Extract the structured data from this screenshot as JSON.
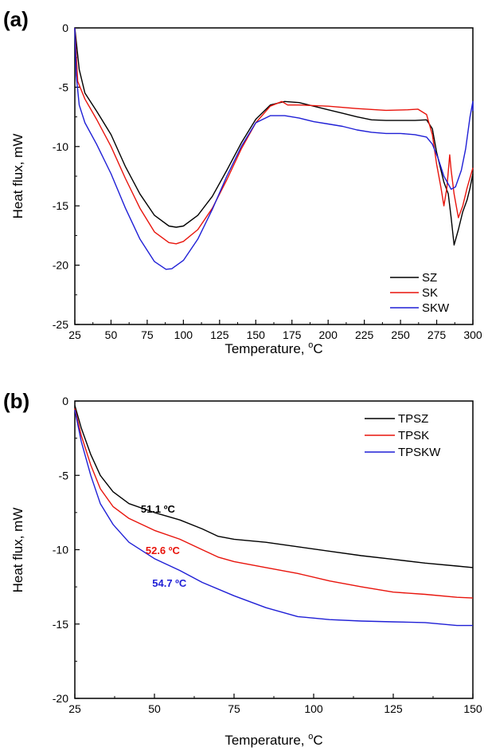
{
  "chart_data": [
    {
      "panel": "(a)",
      "type": "line",
      "xlabel": "Temperature, °C",
      "ylabel": "Heat flux, mW",
      "xlim": [
        25,
        300
      ],
      "ylim": [
        -25,
        0
      ],
      "xticks": [
        25,
        50,
        75,
        100,
        125,
        150,
        175,
        200,
        225,
        250,
        275,
        300
      ],
      "yticks": [
        0,
        -5,
        -10,
        -15,
        -20,
        -25
      ],
      "legend_position": "bottom-right",
      "series": [
        {
          "name": "SZ",
          "color": "#000000",
          "points": [
            [
              25,
              0
            ],
            [
              28,
              -3.5
            ],
            [
              32,
              -5.5
            ],
            [
              40,
              -7
            ],
            [
              50,
              -9
            ],
            [
              60,
              -11.7
            ],
            [
              70,
              -14
            ],
            [
              80,
              -15.8
            ],
            [
              90,
              -16.7
            ],
            [
              95,
              -16.8
            ],
            [
              100,
              -16.7
            ],
            [
              110,
              -15.8
            ],
            [
              120,
              -14.2
            ],
            [
              130,
              -12
            ],
            [
              140,
              -9.7
            ],
            [
              150,
              -7.7
            ],
            [
              160,
              -6.5
            ],
            [
              170,
              -6.2
            ],
            [
              180,
              -6.3
            ],
            [
              190,
              -6.6
            ],
            [
              200,
              -6.9
            ],
            [
              210,
              -7.2
            ],
            [
              220,
              -7.5
            ],
            [
              230,
              -7.75
            ],
            [
              240,
              -7.8
            ],
            [
              250,
              -7.8
            ],
            [
              260,
              -7.8
            ],
            [
              268,
              -7.75
            ],
            [
              272,
              -8.5
            ],
            [
              275,
              -10.5
            ],
            [
              280,
              -13
            ],
            [
              283,
              -14
            ],
            [
              285,
              -16
            ],
            [
              287,
              -18.3
            ],
            [
              290,
              -17
            ],
            [
              293,
              -15.5
            ],
            [
              296,
              -14.5
            ],
            [
              298,
              -13.5
            ],
            [
              300,
              -12.3
            ]
          ]
        },
        {
          "name": "SK",
          "color": "#e8140c",
          "points": [
            [
              25,
              0
            ],
            [
              27,
              -4.5
            ],
            [
              32,
              -6
            ],
            [
              40,
              -7.7
            ],
            [
              50,
              -10
            ],
            [
              60,
              -12.7
            ],
            [
              70,
              -15.2
            ],
            [
              80,
              -17.2
            ],
            [
              90,
              -18.1
            ],
            [
              95,
              -18.2
            ],
            [
              100,
              -18
            ],
            [
              110,
              -17
            ],
            [
              120,
              -15.2
            ],
            [
              130,
              -12.8
            ],
            [
              140,
              -10.2
            ],
            [
              150,
              -8
            ],
            [
              160,
              -6.6
            ],
            [
              168,
              -6.2
            ],
            [
              172,
              -6.5
            ],
            [
              180,
              -6.5
            ],
            [
              200,
              -6.6
            ],
            [
              220,
              -6.8
            ],
            [
              240,
              -6.95
            ],
            [
              255,
              -6.9
            ],
            [
              262,
              -6.85
            ],
            [
              268,
              -7.3
            ],
            [
              272,
              -9
            ],
            [
              275,
              -11.5
            ],
            [
              278,
              -13.5
            ],
            [
              280,
              -15
            ],
            [
              282,
              -13.5
            ],
            [
              284,
              -10.7
            ],
            [
              285,
              -12
            ],
            [
              287,
              -14
            ],
            [
              290,
              -16
            ],
            [
              293,
              -15
            ],
            [
              296,
              -13.5
            ],
            [
              300,
              -11.8
            ]
          ]
        },
        {
          "name": "SKW",
          "color": "#1f1fd6",
          "points": [
            [
              25,
              0
            ],
            [
              26,
              -4
            ],
            [
              28,
              -6.5
            ],
            [
              32,
              -8
            ],
            [
              40,
              -9.8
            ],
            [
              50,
              -12.3
            ],
            [
              60,
              -15.2
            ],
            [
              70,
              -17.8
            ],
            [
              80,
              -19.7
            ],
            [
              88,
              -20.35
            ],
            [
              92,
              -20.3
            ],
            [
              100,
              -19.6
            ],
            [
              110,
              -17.8
            ],
            [
              120,
              -15.3
            ],
            [
              130,
              -12.5
            ],
            [
              140,
              -10
            ],
            [
              150,
              -8
            ],
            [
              160,
              -7.4
            ],
            [
              170,
              -7.4
            ],
            [
              180,
              -7.6
            ],
            [
              190,
              -7.9
            ],
            [
              200,
              -8.1
            ],
            [
              210,
              -8.3
            ],
            [
              220,
              -8.6
            ],
            [
              230,
              -8.8
            ],
            [
              240,
              -8.9
            ],
            [
              250,
              -8.9
            ],
            [
              260,
              -9
            ],
            [
              268,
              -9.2
            ],
            [
              272,
              -9.8
            ],
            [
              276,
              -11
            ],
            [
              280,
              -12.5
            ],
            [
              285,
              -13.6
            ],
            [
              288,
              -13.4
            ],
            [
              292,
              -12
            ],
            [
              295,
              -10.2
            ],
            [
              298,
              -7.5
            ],
            [
              300,
              -6.2
            ],
            [
              301,
              -7
            ]
          ]
        }
      ]
    },
    {
      "panel": "(b)",
      "type": "line",
      "xlabel": "Temperature, °C",
      "ylabel": "Heat flux, mW",
      "xlim": [
        25,
        150
      ],
      "ylim": [
        -20,
        0
      ],
      "xticks": [
        25,
        50,
        75,
        100,
        125,
        150
      ],
      "yticks": [
        0,
        -5,
        -10,
        -15,
        -20
      ],
      "legend_position": "top-right",
      "annotations": [
        {
          "text": "51.1 ºC",
          "x": 51.1,
          "y": -7.5,
          "color": "#000000"
        },
        {
          "text": "52.6 ºC",
          "x": 52.6,
          "y": -10.3,
          "color": "#e8140c"
        },
        {
          "text": "54.7 ºC",
          "x": 54.7,
          "y": -12.5,
          "color": "#1f1fd6"
        }
      ],
      "series": [
        {
          "name": "TPSZ",
          "color": "#000000",
          "points": [
            [
              25,
              -0.3
            ],
            [
              27,
              -1.8
            ],
            [
              30,
              -3.6
            ],
            [
              33,
              -5
            ],
            [
              37,
              -6.1
            ],
            [
              42,
              -6.9
            ],
            [
              50,
              -7.5
            ],
            [
              58,
              -8
            ],
            [
              65,
              -8.6
            ],
            [
              70,
              -9.1
            ],
            [
              75,
              -9.3
            ],
            [
              85,
              -9.5
            ],
            [
              95,
              -9.8
            ],
            [
              105,
              -10.1
            ],
            [
              115,
              -10.4
            ],
            [
              125,
              -10.65
            ],
            [
              135,
              -10.9
            ],
            [
              145,
              -11.1
            ],
            [
              150,
              -11.2
            ]
          ]
        },
        {
          "name": "TPSK",
          "color": "#e8140c",
          "points": [
            [
              25,
              -0.5
            ],
            [
              27,
              -2.3
            ],
            [
              30,
              -4.3
            ],
            [
              33,
              -5.9
            ],
            [
              37,
              -7.1
            ],
            [
              42,
              -7.9
            ],
            [
              50,
              -8.7
            ],
            [
              58,
              -9.3
            ],
            [
              65,
              -10
            ],
            [
              70,
              -10.5
            ],
            [
              75,
              -10.8
            ],
            [
              85,
              -11.2
            ],
            [
              95,
              -11.6
            ],
            [
              105,
              -12.1
            ],
            [
              115,
              -12.5
            ],
            [
              125,
              -12.85
            ],
            [
              135,
              -13
            ],
            [
              145,
              -13.2
            ],
            [
              150,
              -13.25
            ]
          ]
        },
        {
          "name": "TPSKW",
          "color": "#1f1fd6",
          "points": [
            [
              25,
              -0.6
            ],
            [
              27,
              -2.7
            ],
            [
              30,
              -5
            ],
            [
              33,
              -6.9
            ],
            [
              37,
              -8.3
            ],
            [
              42,
              -9.5
            ],
            [
              50,
              -10.6
            ],
            [
              58,
              -11.4
            ],
            [
              65,
              -12.2
            ],
            [
              75,
              -13.1
            ],
            [
              85,
              -13.9
            ],
            [
              95,
              -14.5
            ],
            [
              105,
              -14.7
            ],
            [
              115,
              -14.8
            ],
            [
              125,
              -14.85
            ],
            [
              135,
              -14.9
            ],
            [
              145,
              -15.1
            ],
            [
              150,
              -15.1
            ]
          ]
        }
      ]
    }
  ]
}
